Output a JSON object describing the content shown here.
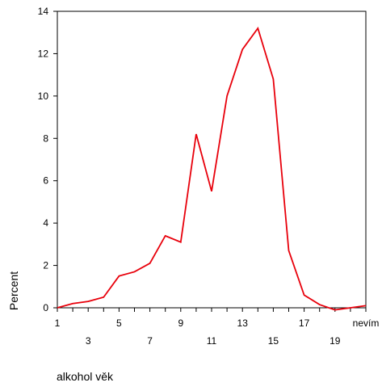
{
  "chart_data": {
    "type": "line",
    "x": [
      "1",
      "2",
      "3",
      "4",
      "5",
      "6",
      "7",
      "8",
      "9",
      "10",
      "11",
      "12",
      "13",
      "14",
      "15",
      "16",
      "17",
      "18",
      "19",
      "20",
      "nevím"
    ],
    "x_tick_labels_upper": [
      "1",
      "5",
      "9",
      "13",
      "17",
      "nevím"
    ],
    "x_tick_labels_lower": [
      "3",
      "7",
      "11",
      "15",
      "19"
    ],
    "series": [
      {
        "color": "#e8000b",
        "values": [
          0.0,
          0.2,
          0.3,
          0.5,
          1.5,
          1.7,
          2.1,
          3.4,
          3.1,
          8.2,
          5.5,
          10.0,
          12.2,
          13.2,
          10.8,
          2.7,
          0.6,
          0.15,
          -0.1,
          0.0,
          0.1
        ]
      }
    ],
    "ylabel": "Percent",
    "xlabel": "alkohol věk",
    "ylim": [
      0,
      14
    ],
    "y_ticks": [
      "0",
      "2",
      "4",
      "6",
      "8",
      "10",
      "12",
      "14"
    ],
    "grid": false
  }
}
